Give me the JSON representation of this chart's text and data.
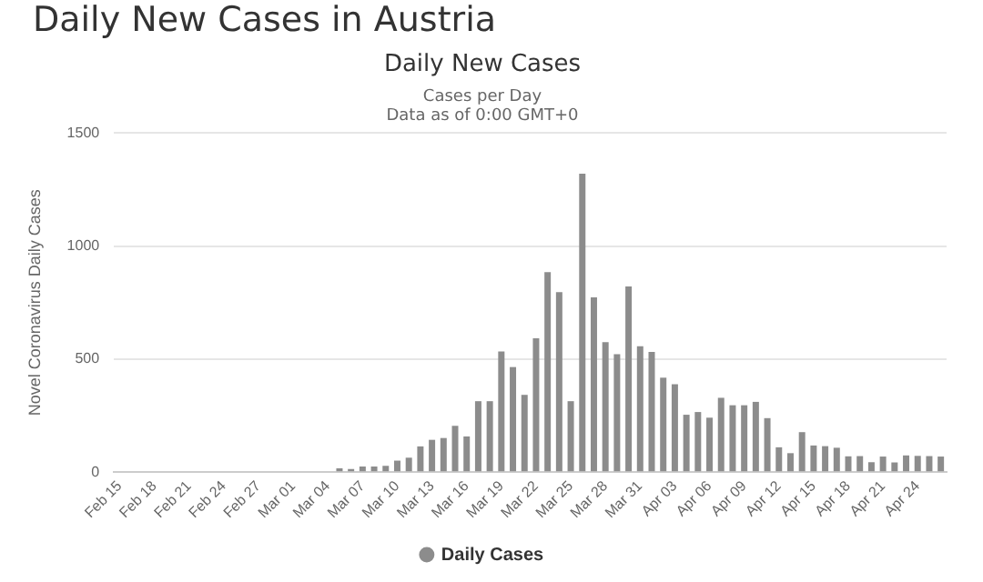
{
  "chart_data": {
    "type": "bar",
    "title": "Daily New Cases",
    "subtitle": "Cases per Day",
    "annotations": [
      "Daily New Cases in Austria",
      "Data as of 0:00 GMT+0"
    ],
    "ylabel": "Novel Coronavirus Daily Cases",
    "categories": [
      "Feb 15",
      null,
      null,
      "Feb 18",
      null,
      null,
      "Feb 21",
      null,
      null,
      "Feb 24",
      null,
      null,
      "Feb 27",
      null,
      null,
      "Mar 01",
      null,
      null,
      "Mar 04",
      null,
      null,
      "Mar 07",
      null,
      null,
      "Mar 10",
      null,
      null,
      "Mar 13",
      null,
      null,
      "Mar 16",
      null,
      null,
      "Mar 19",
      null,
      null,
      "Mar 22",
      null,
      null,
      "Mar 25",
      null,
      null,
      "Mar 28",
      null,
      null,
      "Mar 31",
      null,
      null,
      "Apr 03",
      null,
      null,
      "Apr 06",
      null,
      null,
      "Apr 09",
      null,
      null,
      "Apr 12",
      null,
      null,
      "Apr 15",
      null,
      null,
      "Apr 18",
      null,
      null,
      "Apr 21",
      null,
      null,
      "Apr 24",
      null,
      null
    ],
    "series": [
      {
        "name": "Daily Cases",
        "color": "#8c8c8c",
        "values": [
          0,
          0,
          0,
          0,
          0,
          0,
          0,
          0,
          0,
          0,
          0,
          0,
          0,
          0,
          0,
          0,
          0,
          0,
          0,
          17,
          14,
          25,
          25,
          28,
          51,
          64,
          114,
          143,
          151,
          205,
          158,
          314,
          314,
          534,
          465,
          342,
          592,
          885,
          796,
          314,
          1321,
          773,
          575,
          522,
          822,
          557,
          532,
          418,
          389,
          254,
          266,
          241,
          329,
          296,
          296,
          311,
          239,
          110,
          84,
          177,
          118,
          115,
          108,
          70,
          71,
          44,
          69,
          43,
          74,
          72,
          71,
          69
        ]
      }
    ],
    "ylim": [
      0,
      1500
    ],
    "yticks": [
      0,
      500,
      1000,
      1500
    ],
    "grid": "y",
    "legend": "bottom"
  }
}
